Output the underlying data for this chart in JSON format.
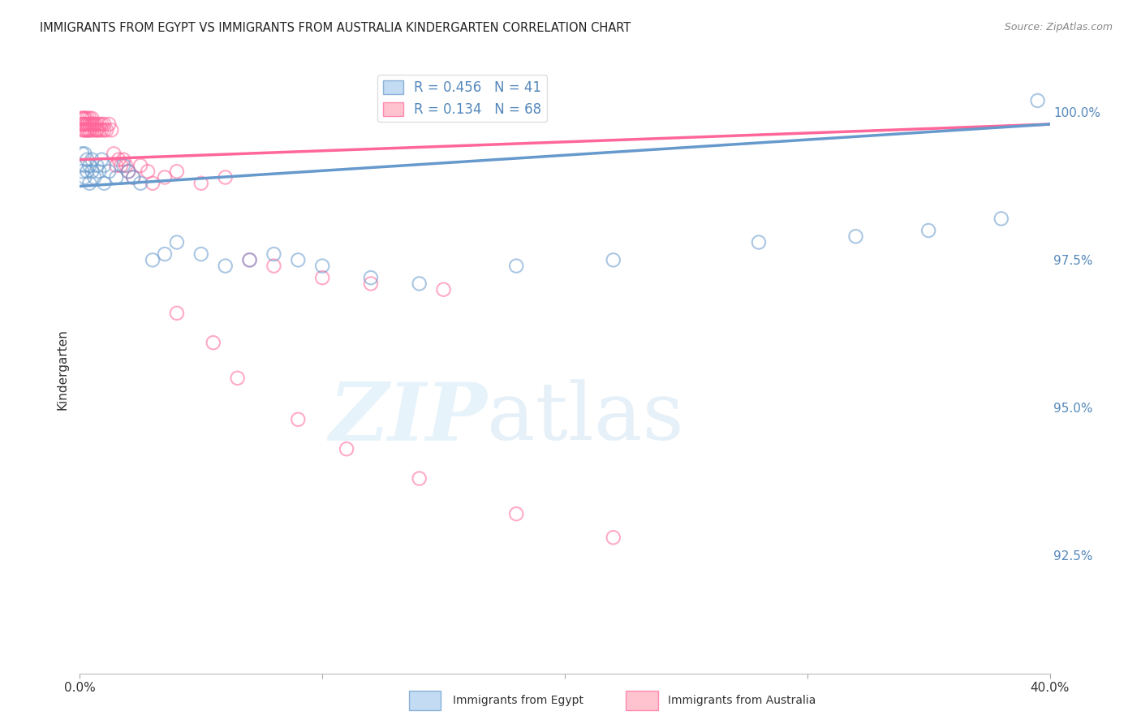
{
  "title": "IMMIGRANTS FROM EGYPT VS IMMIGRANTS FROM AUSTRALIA KINDERGARTEN CORRELATION CHART",
  "source": "Source: ZipAtlas.com",
  "ylabel": "Kindergarten",
  "ylabel_right_labels": [
    "100.0%",
    "97.5%",
    "95.0%",
    "92.5%"
  ],
  "ylabel_right_values": [
    1.0,
    0.975,
    0.95,
    0.925
  ],
  "x_range": [
    0.0,
    0.4
  ],
  "y_range": [
    0.905,
    1.008
  ],
  "R_egypt": 0.456,
  "N_egypt": 41,
  "R_australia": 0.134,
  "N_australia": 68,
  "color_egypt": "#6699CC",
  "color_australia": "#FF6699",
  "egypt_x": [
    0.001,
    0.001,
    0.002,
    0.002,
    0.002,
    0.003,
    0.003,
    0.004,
    0.004,
    0.005,
    0.005,
    0.006,
    0.007,
    0.008,
    0.009,
    0.01,
    0.01,
    0.012,
    0.015,
    0.018,
    0.02,
    0.022,
    0.025,
    0.03,
    0.035,
    0.04,
    0.05,
    0.06,
    0.07,
    0.08,
    0.09,
    0.1,
    0.12,
    0.14,
    0.18,
    0.22,
    0.28,
    0.32,
    0.35,
    0.38,
    0.395
  ],
  "egypt_y": [
    0.993,
    0.99,
    0.993,
    0.991,
    0.989,
    0.992,
    0.99,
    0.991,
    0.988,
    0.992,
    0.99,
    0.989,
    0.991,
    0.99,
    0.992,
    0.991,
    0.988,
    0.99,
    0.989,
    0.991,
    0.99,
    0.989,
    0.988,
    0.975,
    0.976,
    0.978,
    0.976,
    0.974,
    0.975,
    0.976,
    0.975,
    0.974,
    0.972,
    0.971,
    0.974,
    0.975,
    0.978,
    0.979,
    0.98,
    0.982,
    1.002
  ],
  "australia_x": [
    0.001,
    0.001,
    0.001,
    0.001,
    0.001,
    0.002,
    0.002,
    0.002,
    0.002,
    0.002,
    0.002,
    0.003,
    0.003,
    0.003,
    0.003,
    0.003,
    0.004,
    0.004,
    0.004,
    0.004,
    0.004,
    0.005,
    0.005,
    0.005,
    0.005,
    0.006,
    0.006,
    0.006,
    0.007,
    0.007,
    0.007,
    0.008,
    0.008,
    0.009,
    0.009,
    0.01,
    0.01,
    0.011,
    0.012,
    0.013,
    0.014,
    0.015,
    0.016,
    0.017,
    0.018,
    0.019,
    0.02,
    0.022,
    0.025,
    0.028,
    0.03,
    0.035,
    0.04,
    0.05,
    0.06,
    0.07,
    0.08,
    0.1,
    0.12,
    0.15,
    0.04,
    0.055,
    0.065,
    0.09,
    0.11,
    0.14,
    0.18,
    0.22
  ],
  "australia_y": [
    0.999,
    0.998,
    0.997,
    0.999,
    0.998,
    0.999,
    0.998,
    0.997,
    0.999,
    0.998,
    0.997,
    0.998,
    0.999,
    0.997,
    0.998,
    0.997,
    0.998,
    0.999,
    0.997,
    0.998,
    0.997,
    0.998,
    0.997,
    0.999,
    0.998,
    0.998,
    0.997,
    0.998,
    0.997,
    0.998,
    0.997,
    0.997,
    0.998,
    0.997,
    0.998,
    0.997,
    0.998,
    0.997,
    0.998,
    0.997,
    0.993,
    0.991,
    0.992,
    0.991,
    0.992,
    0.991,
    0.99,
    0.989,
    0.991,
    0.99,
    0.988,
    0.989,
    0.99,
    0.988,
    0.989,
    0.975,
    0.974,
    0.972,
    0.971,
    0.97,
    0.966,
    0.961,
    0.955,
    0.948,
    0.943,
    0.938,
    0.932,
    0.928
  ]
}
